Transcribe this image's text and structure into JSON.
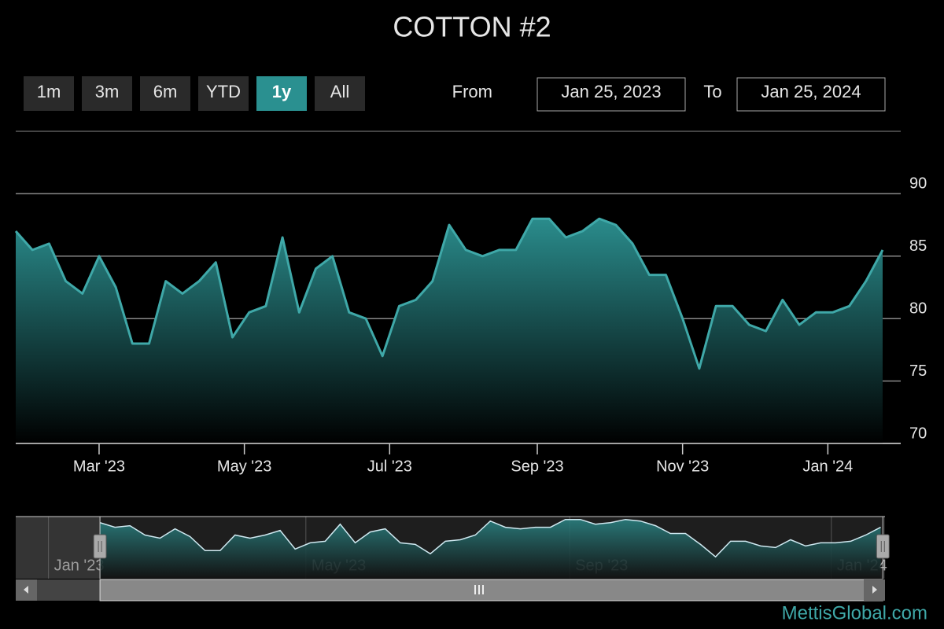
{
  "chart_data": {
    "type": "area",
    "title": "COTTON #2",
    "range_buttons": [
      "1m",
      "3m",
      "6m",
      "YTD",
      "1y",
      "All"
    ],
    "selected_button": "1y",
    "from_label": "From",
    "from_value": "Jan 25, 2023",
    "to_label": "To",
    "to_value": "Jan 25, 2024",
    "credits": "MettisGlobal.com",
    "color": "#3fa8a8",
    "x": [
      "2023-01-25",
      "2023-02-01",
      "2023-02-08",
      "2023-02-15",
      "2023-02-22",
      "2023-03-01",
      "2023-03-08",
      "2023-03-15",
      "2023-03-22",
      "2023-03-29",
      "2023-04-05",
      "2023-04-12",
      "2023-04-19",
      "2023-04-26",
      "2023-05-03",
      "2023-05-10",
      "2023-05-17",
      "2023-05-24",
      "2023-05-31",
      "2023-06-07",
      "2023-06-14",
      "2023-06-21",
      "2023-06-28",
      "2023-07-05",
      "2023-07-12",
      "2023-07-19",
      "2023-07-26",
      "2023-08-02",
      "2023-08-09",
      "2023-08-16",
      "2023-08-23",
      "2023-08-30",
      "2023-09-06",
      "2023-09-13",
      "2023-09-20",
      "2023-09-27",
      "2023-10-04",
      "2023-10-11",
      "2023-10-18",
      "2023-10-25",
      "2023-11-01",
      "2023-11-08",
      "2023-11-15",
      "2023-11-22",
      "2023-11-29",
      "2023-12-06",
      "2023-12-13",
      "2023-12-20",
      "2023-12-27",
      "2024-01-03",
      "2024-01-10",
      "2024-01-17",
      "2024-01-24"
    ],
    "values": [
      87,
      85.5,
      86,
      83,
      82,
      85,
      82.5,
      78,
      78,
      83,
      82,
      83,
      84.5,
      78.5,
      80.5,
      81,
      86.5,
      80.5,
      84,
      85,
      80.5,
      80,
      77,
      81,
      81.5,
      83,
      87.5,
      85.5,
      85,
      85.5,
      85.5,
      88,
      88,
      86.5,
      87,
      88,
      87.5,
      86,
      83.5,
      83.5,
      80,
      76,
      81,
      81,
      79.5,
      79,
      81.5,
      79.5,
      80.5,
      80.5,
      81,
      83,
      85.5
    ],
    "xlim": [
      "2023-01-25",
      "2024-01-25"
    ],
    "xticks": [
      {
        "value": "2023-03-01",
        "label": "Mar '23"
      },
      {
        "value": "2023-05-01",
        "label": "May '23"
      },
      {
        "value": "2023-07-01",
        "label": "Jul '23"
      },
      {
        "value": "2023-09-01",
        "label": "Sep '23"
      },
      {
        "value": "2023-11-01",
        "label": "Nov '23"
      },
      {
        "value": "2024-01-01",
        "label": "Jan '24"
      }
    ],
    "ylim": [
      70,
      95
    ],
    "yticks": [
      70,
      75,
      80,
      85,
      90
    ],
    "grid": true,
    "navigator": {
      "xlim": [
        "2022-12-27",
        "2024-01-26"
      ],
      "xticks": [
        {
          "value": "2023-01-01",
          "label": "Jan '23"
        },
        {
          "value": "2023-05-01",
          "label": "May '23"
        },
        {
          "value": "2023-09-01",
          "label": "Sep '23"
        },
        {
          "value": "2024-01-01",
          "label": "Jan '24"
        }
      ]
    }
  }
}
